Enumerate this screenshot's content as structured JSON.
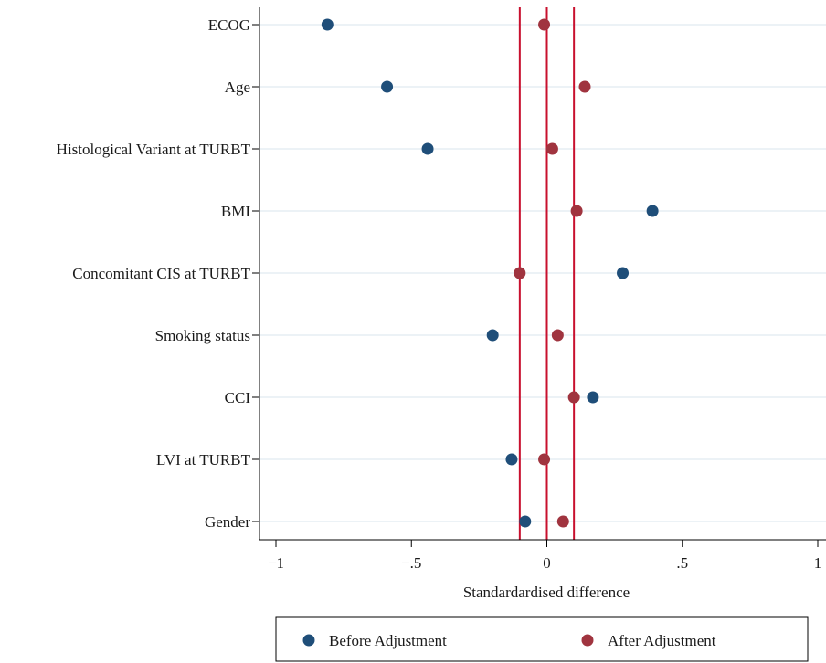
{
  "chart_data": {
    "type": "scatter",
    "orientation": "horizontal-dot-plot",
    "xlabel": "Standardardised difference",
    "xlim": [
      -1,
      1
    ],
    "xticks": [
      -1,
      -0.5,
      0,
      0.5,
      1
    ],
    "xtick_labels": [
      "−1",
      "−.5",
      "0",
      ".5",
      "1"
    ],
    "categories": [
      "ECOG",
      "Age",
      "Histological Variant at TURBT",
      "BMI",
      "Concomitant CIS at TURBT",
      "Smoking status",
      "CCI",
      "LVI at TURBT",
      "Gender"
    ],
    "series": [
      {
        "name": "Before Adjustment",
        "color": "#1f4e79",
        "values": [
          -0.81,
          -0.59,
          -0.44,
          0.39,
          0.28,
          -0.2,
          0.17,
          -0.13,
          -0.08
        ]
      },
      {
        "name": "After Adjustment",
        "color": "#a0343f",
        "values": [
          -0.01,
          0.14,
          0.02,
          0.11,
          -0.1,
          0.04,
          0.1,
          -0.01,
          0.06
        ]
      }
    ],
    "reference_lines": {
      "x": [
        -0.1,
        0,
        0.1
      ],
      "color": "#c8102e"
    },
    "grid": true,
    "legend_position": "bottom"
  }
}
